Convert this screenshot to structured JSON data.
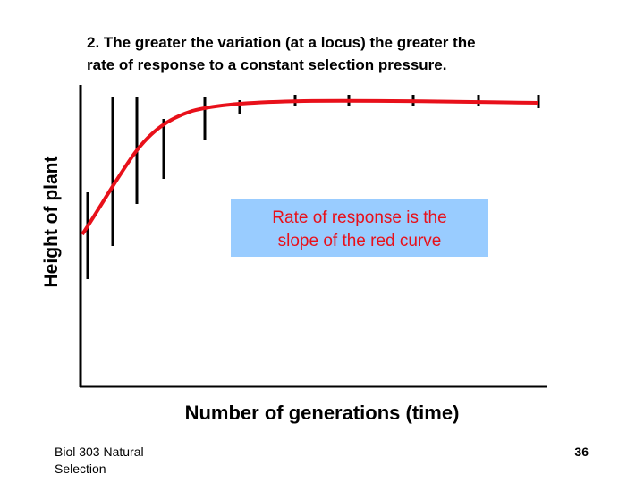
{
  "title": {
    "lines": [
      "2. The greater the variation (at a locus) the greater the",
      "rate of response to a constant selection pressure."
    ]
  },
  "y_axis_label": "Height of plant",
  "x_axis_label": "Number of generations (time)",
  "callout": {
    "lines": [
      "Rate of response is the",
      "slope of the red curve"
    ]
  },
  "footer": {
    "source": [
      "Biol 303 Natural",
      "Selection"
    ],
    "page": "36"
  }
}
